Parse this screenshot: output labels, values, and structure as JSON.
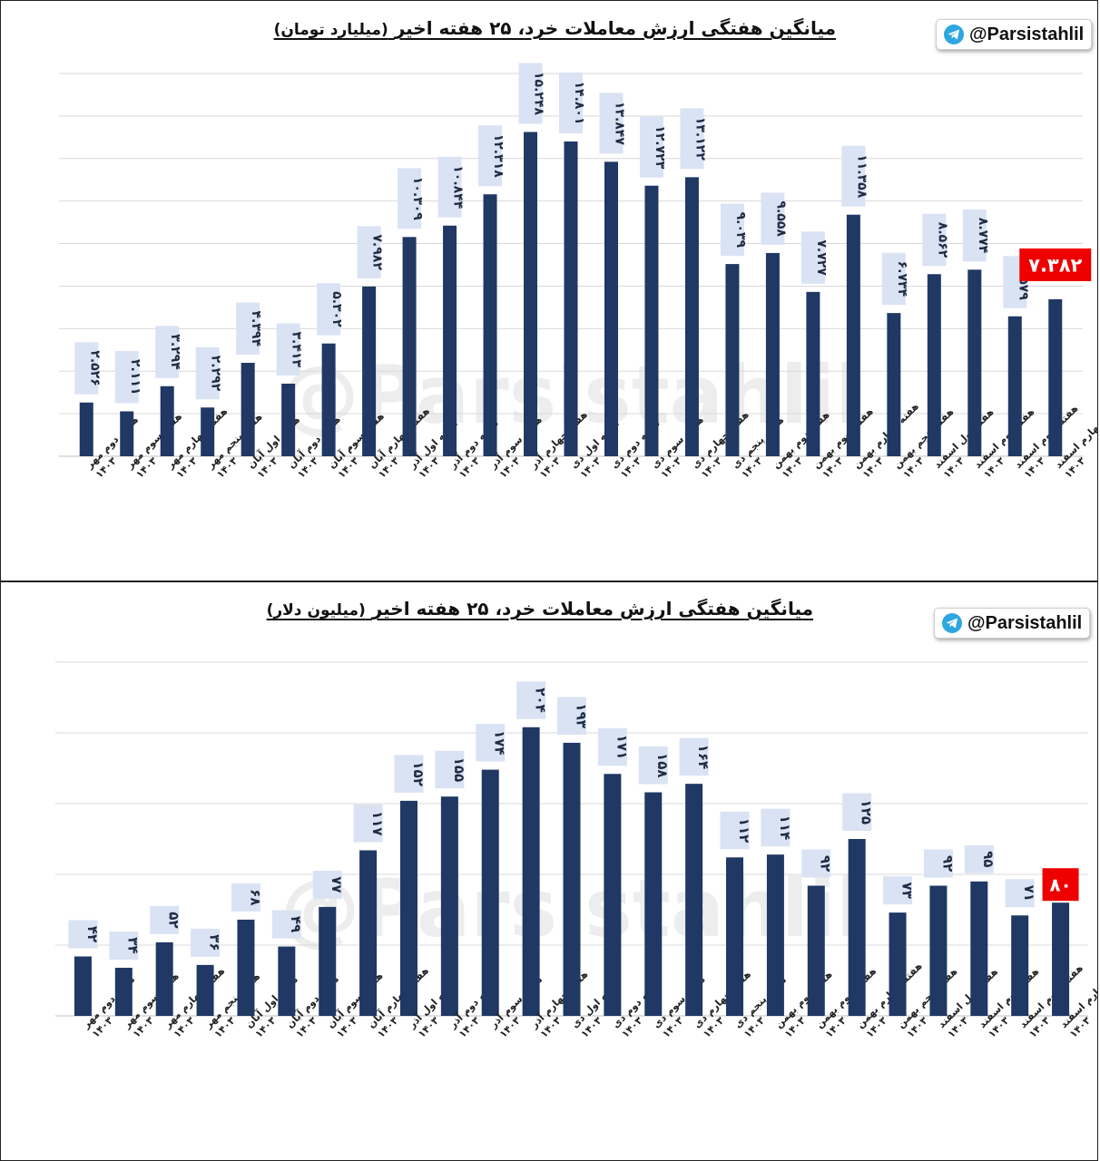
{
  "channel": {
    "handle": "@Parsistahlil",
    "watermark": "@Parsistahlil"
  },
  "colors": {
    "bar": "#1f3864",
    "highlight": "#ee0000",
    "label_bg": "#dae3f3",
    "grid": "#d9d9d9"
  },
  "icons": {
    "badge_icon": "telegram-icon"
  },
  "weeks": [
    "هفته دوم مهر ۱۴۰۳",
    "هفته سوم مهر ۱۴۰۳",
    "هفته چهارم مهر ۱۴۰۳",
    "هفته پنجم مهر ۱۴۰۳",
    "هفته اول آبان ۱۴۰۳",
    "هفته دوم آبان ۱۴۰۳",
    "هفته سوم آبان ۱۴۰۳",
    "هفته چهارم آبان ۱۴۰۳",
    "هفته اول آذر ۱۴۰۳",
    "هفته دوم آذر ۱۴۰۳",
    "هفته سوم آذر ۱۴۰۳",
    "هفته چهارم آذر ۱۴۰۳",
    "هفته اول دی ۱۴۰۳",
    "هفته دوم دی ۱۴۰۳",
    "هفته سوم دی ۱۴۰۳",
    "هفته چهارم دی ۱۴۰۳",
    "هفته پنجم دی ۱۴۰۳",
    "هفته دوم بهمن ۱۴۰۳",
    "هفته سوم بهمن ۱۴۰۳",
    "هفته چهارم بهمن ۱۴۰۳",
    "هفته پنجم بهمن ۱۴۰۳",
    "هفته اول اسفند ۱۴۰۳",
    "هفته دوم اسفند ۱۴۰۳",
    "هفته سوم اسفند ۱۴۰۳",
    "هفته چهارم اسفند ۱۴۰۳"
  ],
  "chart_data": [
    {
      "type": "bar",
      "title": "میانگین هفتگی ارزش معاملات خرد، ۲۵ هفته اخیر",
      "title_unit": "(میلیارد تومان)",
      "values": [
        2.526,
        2.111,
        3.294,
        2.292,
        4.394,
        3.413,
        5.302,
        7.982,
        10.309,
        10.844,
        12.318,
        15.248,
        14.801,
        13.847,
        12.723,
        13.122,
        9.039,
        9.558,
        7.727,
        11.358,
        6.734,
        8.562,
        8.774,
        6.579,
        7.382
      ],
      "labels": [
        "۲.۵۲۶",
        "۲.۱۱۱",
        "۳.۲۹۴",
        "۲.۲۹۲",
        "۴.۳۹۴",
        "۳.۴۱۳",
        "۵.۳۰۲",
        "۷.۹۸۲",
        "۱۰.۳۰۹",
        "۱۰.۸۴۴",
        "۱۲.۳۱۸",
        "۱۵.۲۴۸",
        "۱۴.۸۰۱",
        "۱۳.۸۴۷",
        "۱۲.۷۲۳",
        "۱۳.۱۲۲",
        "۹.۰۳۹",
        "۹.۵۵۸",
        "۷.۷۲۷",
        "۱۱.۳۵۸",
        "۶.۷۳۴",
        "۸.۵۶۲",
        "۸.۷۷۴",
        "۶.۵۷۹",
        "۷.۳۸۲"
      ],
      "highlight_index": 24,
      "ylim": [
        0,
        18
      ],
      "grid": true,
      "legend": "none"
    },
    {
      "type": "bar",
      "title": "میانگین هفتگی ارزش معاملات خرد، ۲۵ هفته اخیر",
      "title_unit": "(میلیون دلار)",
      "values": [
        42,
        34,
        52,
        36,
        68,
        49,
        77,
        117,
        152,
        155,
        174,
        204,
        193,
        171,
        158,
        164,
        112,
        114,
        92,
        125,
        73,
        92,
        95,
        71,
        80
      ],
      "labels": [
        "۴۲",
        "۳۴",
        "۵۲",
        "۳۶",
        "۶۸",
        "۴۹",
        "۷۷",
        "۱۱۷",
        "۱۵۲",
        "۱۵۵",
        "۱۷۴",
        "۲۰۴",
        "۱۹۳",
        "۱۷۱",
        "۱۵۸",
        "۱۶۴",
        "۱۱۲",
        "۱۱۴",
        "۹۲",
        "۱۲۵",
        "۷۳",
        "۹۲",
        "۹۵",
        "۷۱",
        "۸۰"
      ],
      "highlight_index": 24,
      "ylim": [
        0,
        250
      ],
      "grid": true,
      "legend": "none"
    }
  ]
}
